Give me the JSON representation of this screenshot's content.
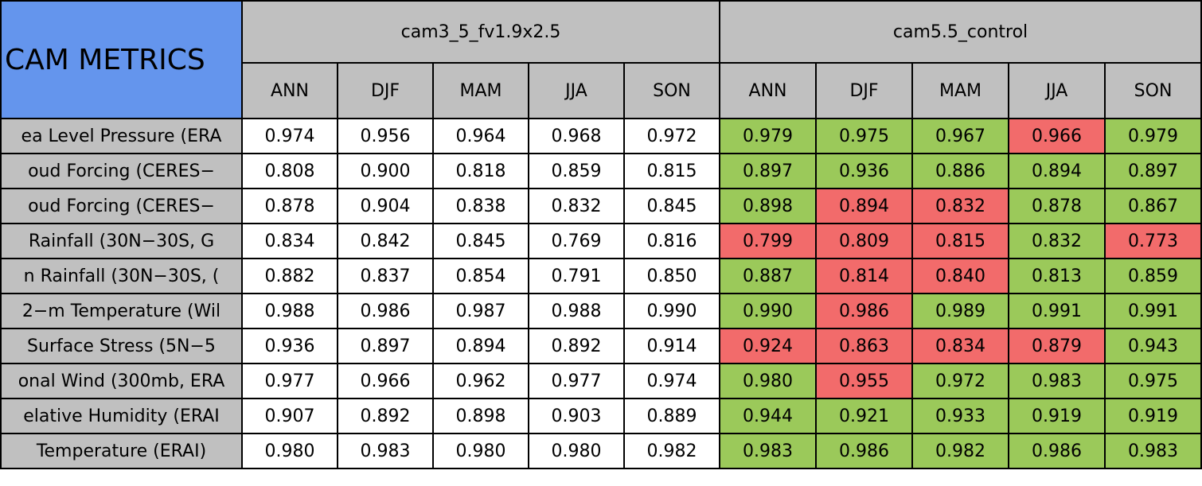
{
  "header": {
    "title": "CAM METRICS",
    "groups": [
      "cam3_5_fv1.9x2.5",
      "cam5.5_control"
    ],
    "seasons": [
      "ANN",
      "DJF",
      "MAM",
      "JJA",
      "SON"
    ]
  },
  "table": {
    "rows": [
      {
        "label": "ea Level Pressure (ERA",
        "values": [
          "0.974",
          "0.956",
          "0.964",
          "0.968",
          "0.972",
          "0.979",
          "0.975",
          "0.967",
          "0.966",
          "0.979"
        ],
        "colors": [
          "#9bc95a",
          "#9bc95a",
          "#9bc95a",
          "#f26b6b",
          "#9bc95a"
        ]
      },
      {
        "label": "oud Forcing (CERES−",
        "values": [
          "0.808",
          "0.900",
          "0.818",
          "0.859",
          "0.815",
          "0.897",
          "0.936",
          "0.886",
          "0.894",
          "0.897"
        ],
        "colors": [
          "#9bc95a",
          "#9bc95a",
          "#9bc95a",
          "#9bc95a",
          "#9bc95a"
        ]
      },
      {
        "label": "oud Forcing (CERES−",
        "values": [
          "0.878",
          "0.904",
          "0.838",
          "0.832",
          "0.845",
          "0.898",
          "0.894",
          "0.832",
          "0.878",
          "0.867"
        ],
        "colors": [
          "#9bc95a",
          "#f26b6b",
          "#f26b6b",
          "#9bc95a",
          "#9bc95a"
        ]
      },
      {
        "label": "Rainfall (30N−30S, G",
        "values": [
          "0.834",
          "0.842",
          "0.845",
          "0.769",
          "0.816",
          "0.799",
          "0.809",
          "0.815",
          "0.832",
          "0.773"
        ],
        "colors": [
          "#f26b6b",
          "#f26b6b",
          "#f26b6b",
          "#9bc95a",
          "#f26b6b"
        ]
      },
      {
        "label": "n Rainfall (30N−30S, (",
        "values": [
          "0.882",
          "0.837",
          "0.854",
          "0.791",
          "0.850",
          "0.887",
          "0.814",
          "0.840",
          "0.813",
          "0.859"
        ],
        "colors": [
          "#9bc95a",
          "#f26b6b",
          "#f26b6b",
          "#9bc95a",
          "#9bc95a"
        ]
      },
      {
        "label": "2−m Temperature (Wil",
        "values": [
          "0.988",
          "0.986",
          "0.987",
          "0.988",
          "0.990",
          "0.990",
          "0.986",
          "0.989",
          "0.991",
          "0.991"
        ],
        "colors": [
          "#9bc95a",
          "#f26b6b",
          "#9bc95a",
          "#9bc95a",
          "#9bc95a"
        ]
      },
      {
        "label": "Surface Stress (5N−5",
        "values": [
          "0.936",
          "0.897",
          "0.894",
          "0.892",
          "0.914",
          "0.924",
          "0.863",
          "0.834",
          "0.879",
          "0.943"
        ],
        "colors": [
          "#f26b6b",
          "#f26b6b",
          "#f26b6b",
          "#f26b6b",
          "#9bc95a"
        ]
      },
      {
        "label": "onal Wind (300mb, ERA",
        "values": [
          "0.977",
          "0.966",
          "0.962",
          "0.977",
          "0.974",
          "0.980",
          "0.955",
          "0.972",
          "0.983",
          "0.975"
        ],
        "colors": [
          "#9bc95a",
          "#f26b6b",
          "#9bc95a",
          "#9bc95a",
          "#9bc95a"
        ]
      },
      {
        "label": "elative Humidity (ERAI",
        "values": [
          "0.907",
          "0.892",
          "0.898",
          "0.903",
          "0.889",
          "0.944",
          "0.921",
          "0.933",
          "0.919",
          "0.919"
        ],
        "colors": [
          "#9bc95a",
          "#9bc95a",
          "#9bc95a",
          "#9bc95a",
          "#9bc95a"
        ]
      },
      {
        "label": "Temperature (ERAI)",
        "values": [
          "0.980",
          "0.983",
          "0.980",
          "0.980",
          "0.982",
          "0.983",
          "0.986",
          "0.982",
          "0.986",
          "0.983"
        ],
        "colors": [
          "#9bc95a",
          "#9bc95a",
          "#9bc95a",
          "#9bc95a",
          "#9bc95a"
        ]
      }
    ]
  }
}
